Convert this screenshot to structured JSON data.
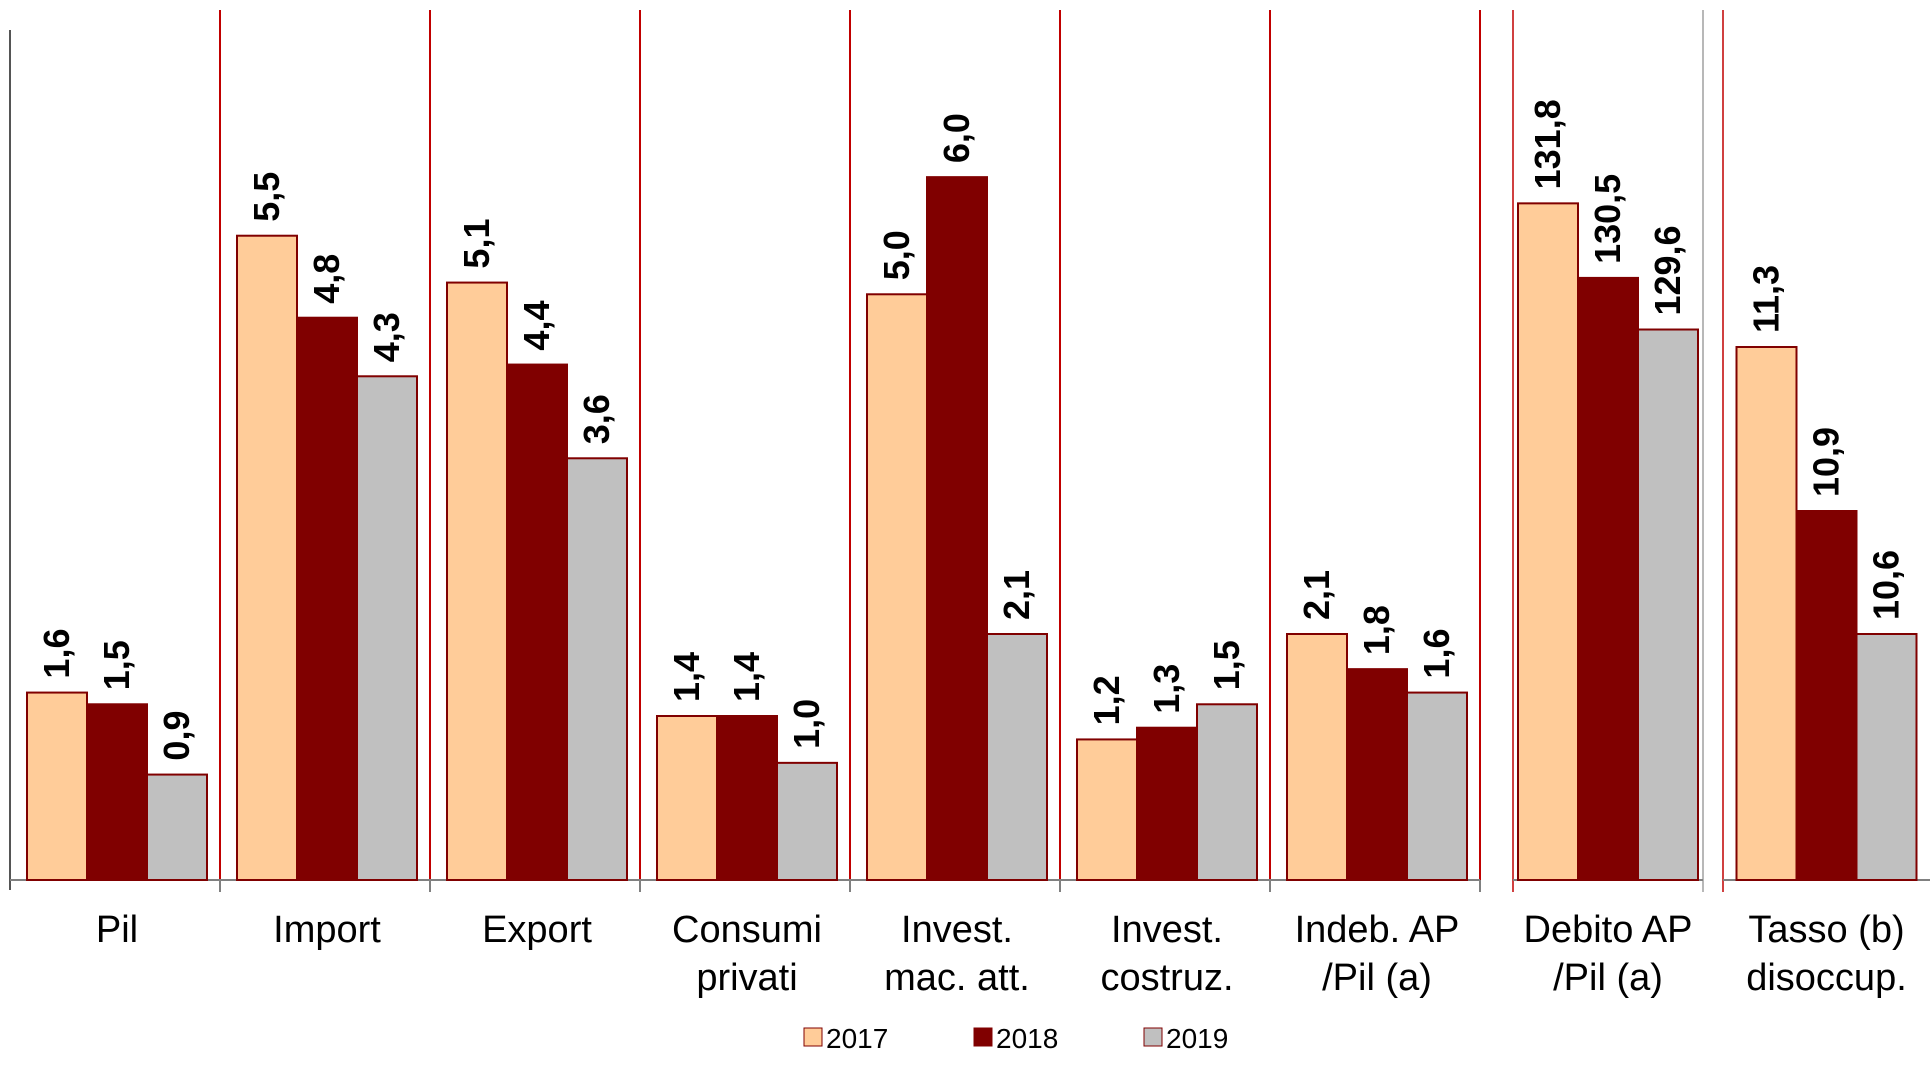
{
  "chart_data": {
    "type": "bar",
    "title": "",
    "xlabel": "",
    "ylabel": "",
    "grid": false,
    "legend_position": "bottom",
    "series": [
      {
        "name": "2017",
        "color": "#FFCC99"
      },
      {
        "name": "2018",
        "color": "#800000"
      },
      {
        "name": "2019",
        "color": "#C0C0C0"
      }
    ],
    "bar_outline_color": "#800000",
    "separator_color": "#C00000",
    "panels": [
      {
        "id": "main",
        "ylim": [
          0,
          7
        ],
        "categories": [
          {
            "lines": [
              "Pil"
            ],
            "values": [
              1.6,
              1.5,
              0.9
            ],
            "labels": [
              "1,6",
              "1,5",
              "0,9"
            ]
          },
          {
            "lines": [
              "Import"
            ],
            "values": [
              5.5,
              4.8,
              4.3
            ],
            "labels": [
              "5,5",
              "4,8",
              "4,3"
            ]
          },
          {
            "lines": [
              "Export"
            ],
            "values": [
              5.1,
              4.4,
              3.6
            ],
            "labels": [
              "5,1",
              "4,4",
              "3,6"
            ]
          },
          {
            "lines": [
              "Consumi",
              "privati"
            ],
            "values": [
              1.4,
              1.4,
              1.0
            ],
            "labels": [
              "1,4",
              "1,4",
              "1,0"
            ]
          },
          {
            "lines": [
              "Invest.",
              "mac. att."
            ],
            "values": [
              5.0,
              6.0,
              2.1
            ],
            "labels": [
              "5,0",
              "6,0",
              "2,1"
            ]
          },
          {
            "lines": [
              "Invest.",
              "costruz."
            ],
            "values": [
              1.2,
              1.3,
              1.5
            ],
            "labels": [
              "1,2",
              "1,3",
              "1,5"
            ]
          },
          {
            "lines": [
              "Indeb. AP",
              "/Pil (a)"
            ],
            "values": [
              2.1,
              1.8,
              1.6
            ],
            "labels": [
              "2,1",
              "1,8",
              "1,6"
            ]
          }
        ]
      },
      {
        "id": "debt",
        "ylim": [
          120,
          134.3
        ],
        "categories": [
          {
            "lines": [
              "Debito AP",
              "/Pil (a)"
            ],
            "values": [
              131.8,
              130.5,
              129.6
            ],
            "labels": [
              "131,8",
              "130,5",
              "129,6"
            ]
          }
        ]
      },
      {
        "id": "unemployment",
        "ylim": [
          10,
          12
        ],
        "categories": [
          {
            "lines": [
              "Tasso (b)",
              "disoccup."
            ],
            "values": [
              11.3,
              10.9,
              10.6
            ],
            "labels": [
              "11,3",
              "10,9",
              "10,6"
            ]
          }
        ]
      }
    ]
  }
}
